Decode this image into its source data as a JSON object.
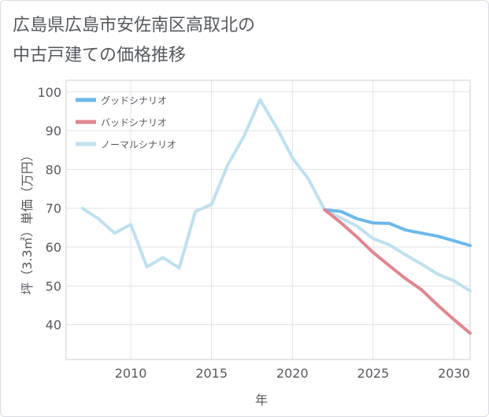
{
  "title_lines": [
    "広島県広島市安佐南区高取北の",
    "中古戸建ての価格推移"
  ],
  "chart_data": {
    "type": "line",
    "xlabel": "年",
    "ylabel": "坪（3.3㎡）単価（万円）",
    "xlim": [
      2006,
      2031
    ],
    "ylim": [
      31,
      103
    ],
    "x_ticks": [
      2010,
      2015,
      2020,
      2025,
      2030
    ],
    "y_ticks": [
      40,
      50,
      60,
      70,
      80,
      90,
      100
    ],
    "series": [
      {
        "name": "グッドシナリオ",
        "color": "#6cb8ea",
        "x": [
          2022,
          2023,
          2024,
          2025,
          2026,
          2027,
          2028,
          2029,
          2030,
          2031
        ],
        "values": [
          69.6,
          69.2,
          67.3,
          66.2,
          66.1,
          64.4,
          63.6,
          62.8,
          61.6,
          60.4
        ]
      },
      {
        "name": "バッドシナリオ",
        "color": "#de8790",
        "x": [
          2022,
          2023,
          2024,
          2025,
          2026,
          2027,
          2028,
          2029,
          2030,
          2031
        ],
        "values": [
          69.6,
          66.3,
          62.6,
          58.6,
          55.2,
          51.9,
          49.0,
          45.0,
          41.3,
          37.8
        ]
      },
      {
        "name": "ノーマルシナリオ",
        "color": "#bfe0ee",
        "x": [
          2007,
          2008,
          2009,
          2010,
          2011,
          2012,
          2013,
          2014,
          2015,
          2016,
          2017,
          2018,
          2019,
          2020,
          2021,
          2022,
          2023,
          2024,
          2025,
          2026,
          2027,
          2028,
          2029,
          2030,
          2031
        ],
        "values": [
          70.0,
          67.3,
          63.6,
          65.8,
          54.9,
          57.3,
          54.6,
          69.2,
          71.0,
          81.2,
          88.5,
          98.0,
          91.0,
          83.0,
          77.5,
          69.6,
          67.5,
          65.4,
          62.2,
          60.6,
          58.0,
          55.6,
          53.0,
          51.3,
          48.7
        ]
      }
    ]
  }
}
